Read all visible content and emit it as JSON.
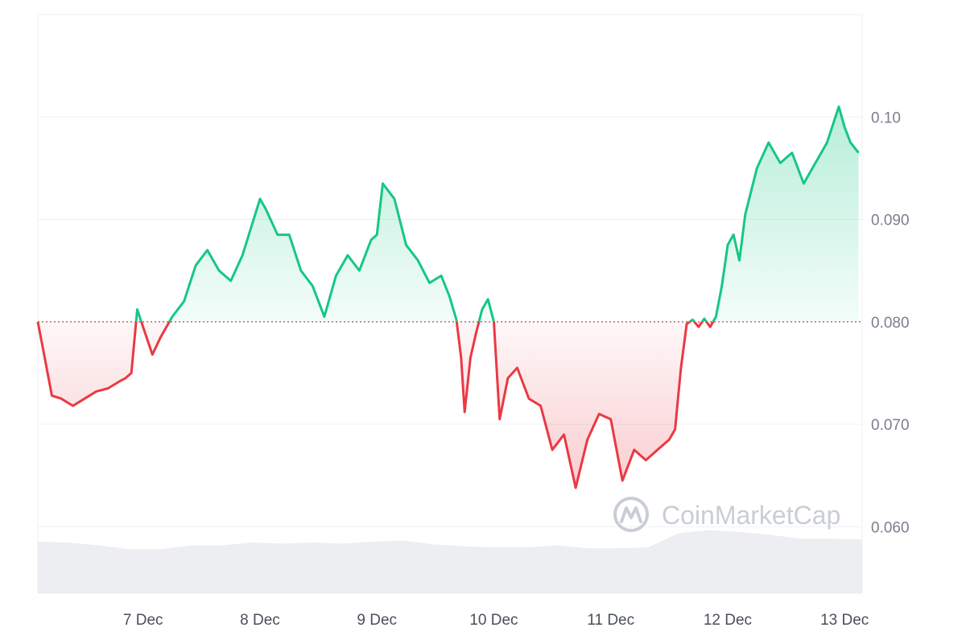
{
  "chart_data": {
    "type": "area",
    "baseline": 0.08,
    "ylim": [
      0.0535,
      0.11
    ],
    "y_ticks": [
      "0.060",
      "0.070",
      "0.080",
      "0.090",
      "0.10"
    ],
    "y_tick_values": [
      0.06,
      0.07,
      0.08,
      0.09,
      0.1
    ],
    "x_ticks": [
      "7 Dec",
      "8 Dec",
      "9 Dec",
      "10 Dec",
      "11 Dec",
      "12 Dec",
      "13 Dec"
    ],
    "x_tick_values": [
      1,
      2,
      3,
      4,
      5,
      6,
      7
    ],
    "xlim": [
      0.1,
      7.15
    ],
    "x": [
      0.1,
      0.15,
      0.22,
      0.3,
      0.4,
      0.5,
      0.6,
      0.7,
      0.8,
      0.85,
      0.9,
      0.95,
      1.0,
      1.08,
      1.15,
      1.25,
      1.35,
      1.45,
      1.55,
      1.65,
      1.75,
      1.85,
      2.0,
      2.05,
      2.15,
      2.25,
      2.35,
      2.45,
      2.55,
      2.65,
      2.75,
      2.85,
      2.95,
      3.0,
      3.05,
      3.15,
      3.25,
      3.35,
      3.45,
      3.55,
      3.62,
      3.68,
      3.72,
      3.75,
      3.8,
      3.85,
      3.9,
      3.95,
      4.0,
      4.05,
      4.12,
      4.2,
      4.3,
      4.4,
      4.5,
      4.6,
      4.7,
      4.8,
      4.9,
      5.0,
      5.1,
      5.2,
      5.3,
      5.4,
      5.5,
      5.55,
      5.6,
      5.65,
      5.7,
      5.75,
      5.8,
      5.85,
      5.9,
      5.95,
      6.0,
      6.05,
      6.1,
      6.15,
      6.25,
      6.35,
      6.45,
      6.55,
      6.65,
      6.75,
      6.85,
      6.95,
      7.0,
      7.05,
      7.12
    ],
    "values": [
      0.08,
      0.077,
      0.0728,
      0.0725,
      0.0718,
      0.0725,
      0.0732,
      0.0735,
      0.0742,
      0.0745,
      0.075,
      0.0812,
      0.0795,
      0.0768,
      0.0785,
      0.0805,
      0.082,
      0.0855,
      0.087,
      0.085,
      0.084,
      0.0865,
      0.092,
      0.091,
      0.0885,
      0.0885,
      0.085,
      0.0835,
      0.0805,
      0.0845,
      0.0865,
      0.085,
      0.088,
      0.0885,
      0.0935,
      0.092,
      0.0875,
      0.086,
      0.0838,
      0.0845,
      0.0825,
      0.0802,
      0.0765,
      0.0712,
      0.0765,
      0.079,
      0.0812,
      0.0822,
      0.08,
      0.0705,
      0.0745,
      0.0755,
      0.0725,
      0.0718,
      0.0675,
      0.069,
      0.0638,
      0.0685,
      0.071,
      0.0705,
      0.0645,
      0.0675,
      0.0665,
      0.0675,
      0.0685,
      0.0695,
      0.0755,
      0.0798,
      0.0802,
      0.0795,
      0.0803,
      0.0795,
      0.0805,
      0.0835,
      0.0875,
      0.0885,
      0.086,
      0.0905,
      0.095,
      0.0975,
      0.0955,
      0.0965,
      0.0935,
      0.0955,
      0.0975,
      0.101,
      0.099,
      0.0975,
      0.0965
    ],
    "volume_profile": [
      0.54,
      0.53,
      0.5,
      0.46,
      0.46,
      0.5,
      0.5,
      0.53,
      0.52,
      0.53,
      0.52,
      0.54,
      0.55,
      0.51,
      0.49,
      0.48,
      0.48,
      0.5,
      0.47,
      0.47,
      0.48,
      0.63,
      0.66,
      0.64,
      0.61,
      0.57,
      0.57,
      0.56
    ]
  },
  "watermark": {
    "brand": "CoinMarketCap"
  },
  "colors": {
    "up_line": "#16c784",
    "down_line": "#ea3943",
    "up_fill_top": "#16c784",
    "down_fill_bottom": "#ea3943",
    "grid": "#eef0f3",
    "baseline_dots": "#b76a70",
    "volume_fill": "#eceef2",
    "axis_text": "#7a7f8c"
  }
}
